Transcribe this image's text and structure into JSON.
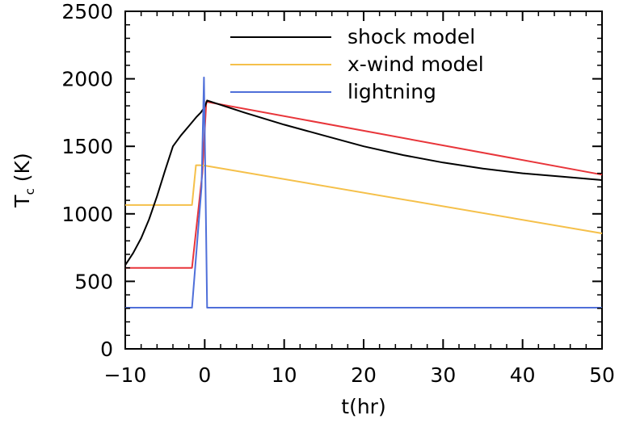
{
  "chart_data": {
    "type": "line",
    "xlabel": "t(hr)",
    "ylabel_main": "T",
    "ylabel_sub": "c",
    "ylabel_unit": " (K)",
    "xlim": [
      -10,
      50
    ],
    "ylim": [
      0,
      2500
    ],
    "xticks": [
      -10,
      0,
      10,
      20,
      30,
      40,
      50
    ],
    "xtick_labels": [
      "−10",
      "0",
      "10",
      "20",
      "30",
      "40",
      "50"
    ],
    "yticks": [
      0,
      500,
      1000,
      1500,
      2000,
      2500
    ],
    "ytick_labels": [
      "0",
      "500",
      "1000",
      "1500",
      "2000",
      "2500"
    ],
    "grid": false,
    "legend_position": "top-right",
    "series": [
      {
        "name": "shock model",
        "color": "#000000",
        "in_legend": true,
        "x": [
          -10,
          -9,
          -8,
          -7,
          -6,
          -5,
          -4,
          -3,
          -2,
          -1,
          -0.5,
          0,
          0.3,
          5,
          10,
          15,
          20,
          25,
          30,
          35,
          40,
          45,
          50
        ],
        "y": [
          620,
          710,
          820,
          960,
          1130,
          1320,
          1500,
          1580,
          1650,
          1720,
          1750,
          1790,
          1840,
          1750,
          1660,
          1580,
          1500,
          1435,
          1380,
          1335,
          1300,
          1275,
          1250
        ]
      },
      {
        "name": "x-wind model",
        "color": "#f5c04a",
        "in_legend": true,
        "x": [
          -10,
          -1.6,
          -1.1,
          -0.6,
          0.2,
          50
        ],
        "y": [
          1065,
          1065,
          1360,
          1360,
          1355,
          855
        ]
      },
      {
        "name": "lightning",
        "color": "#4f6fd9",
        "in_legend": true,
        "x": [
          -10,
          -1.6,
          -0.4,
          -0.1,
          0.1,
          0.3,
          50
        ],
        "y": [
          305,
          305,
          1200,
          2010,
          1200,
          305,
          305
        ]
      },
      {
        "color": "#e8353a",
        "in_legend": false,
        "x": [
          -10,
          -1.6,
          -0.3,
          0.2,
          50
        ],
        "y": [
          600,
          600,
          1300,
          1830,
          1290
        ]
      }
    ]
  }
}
